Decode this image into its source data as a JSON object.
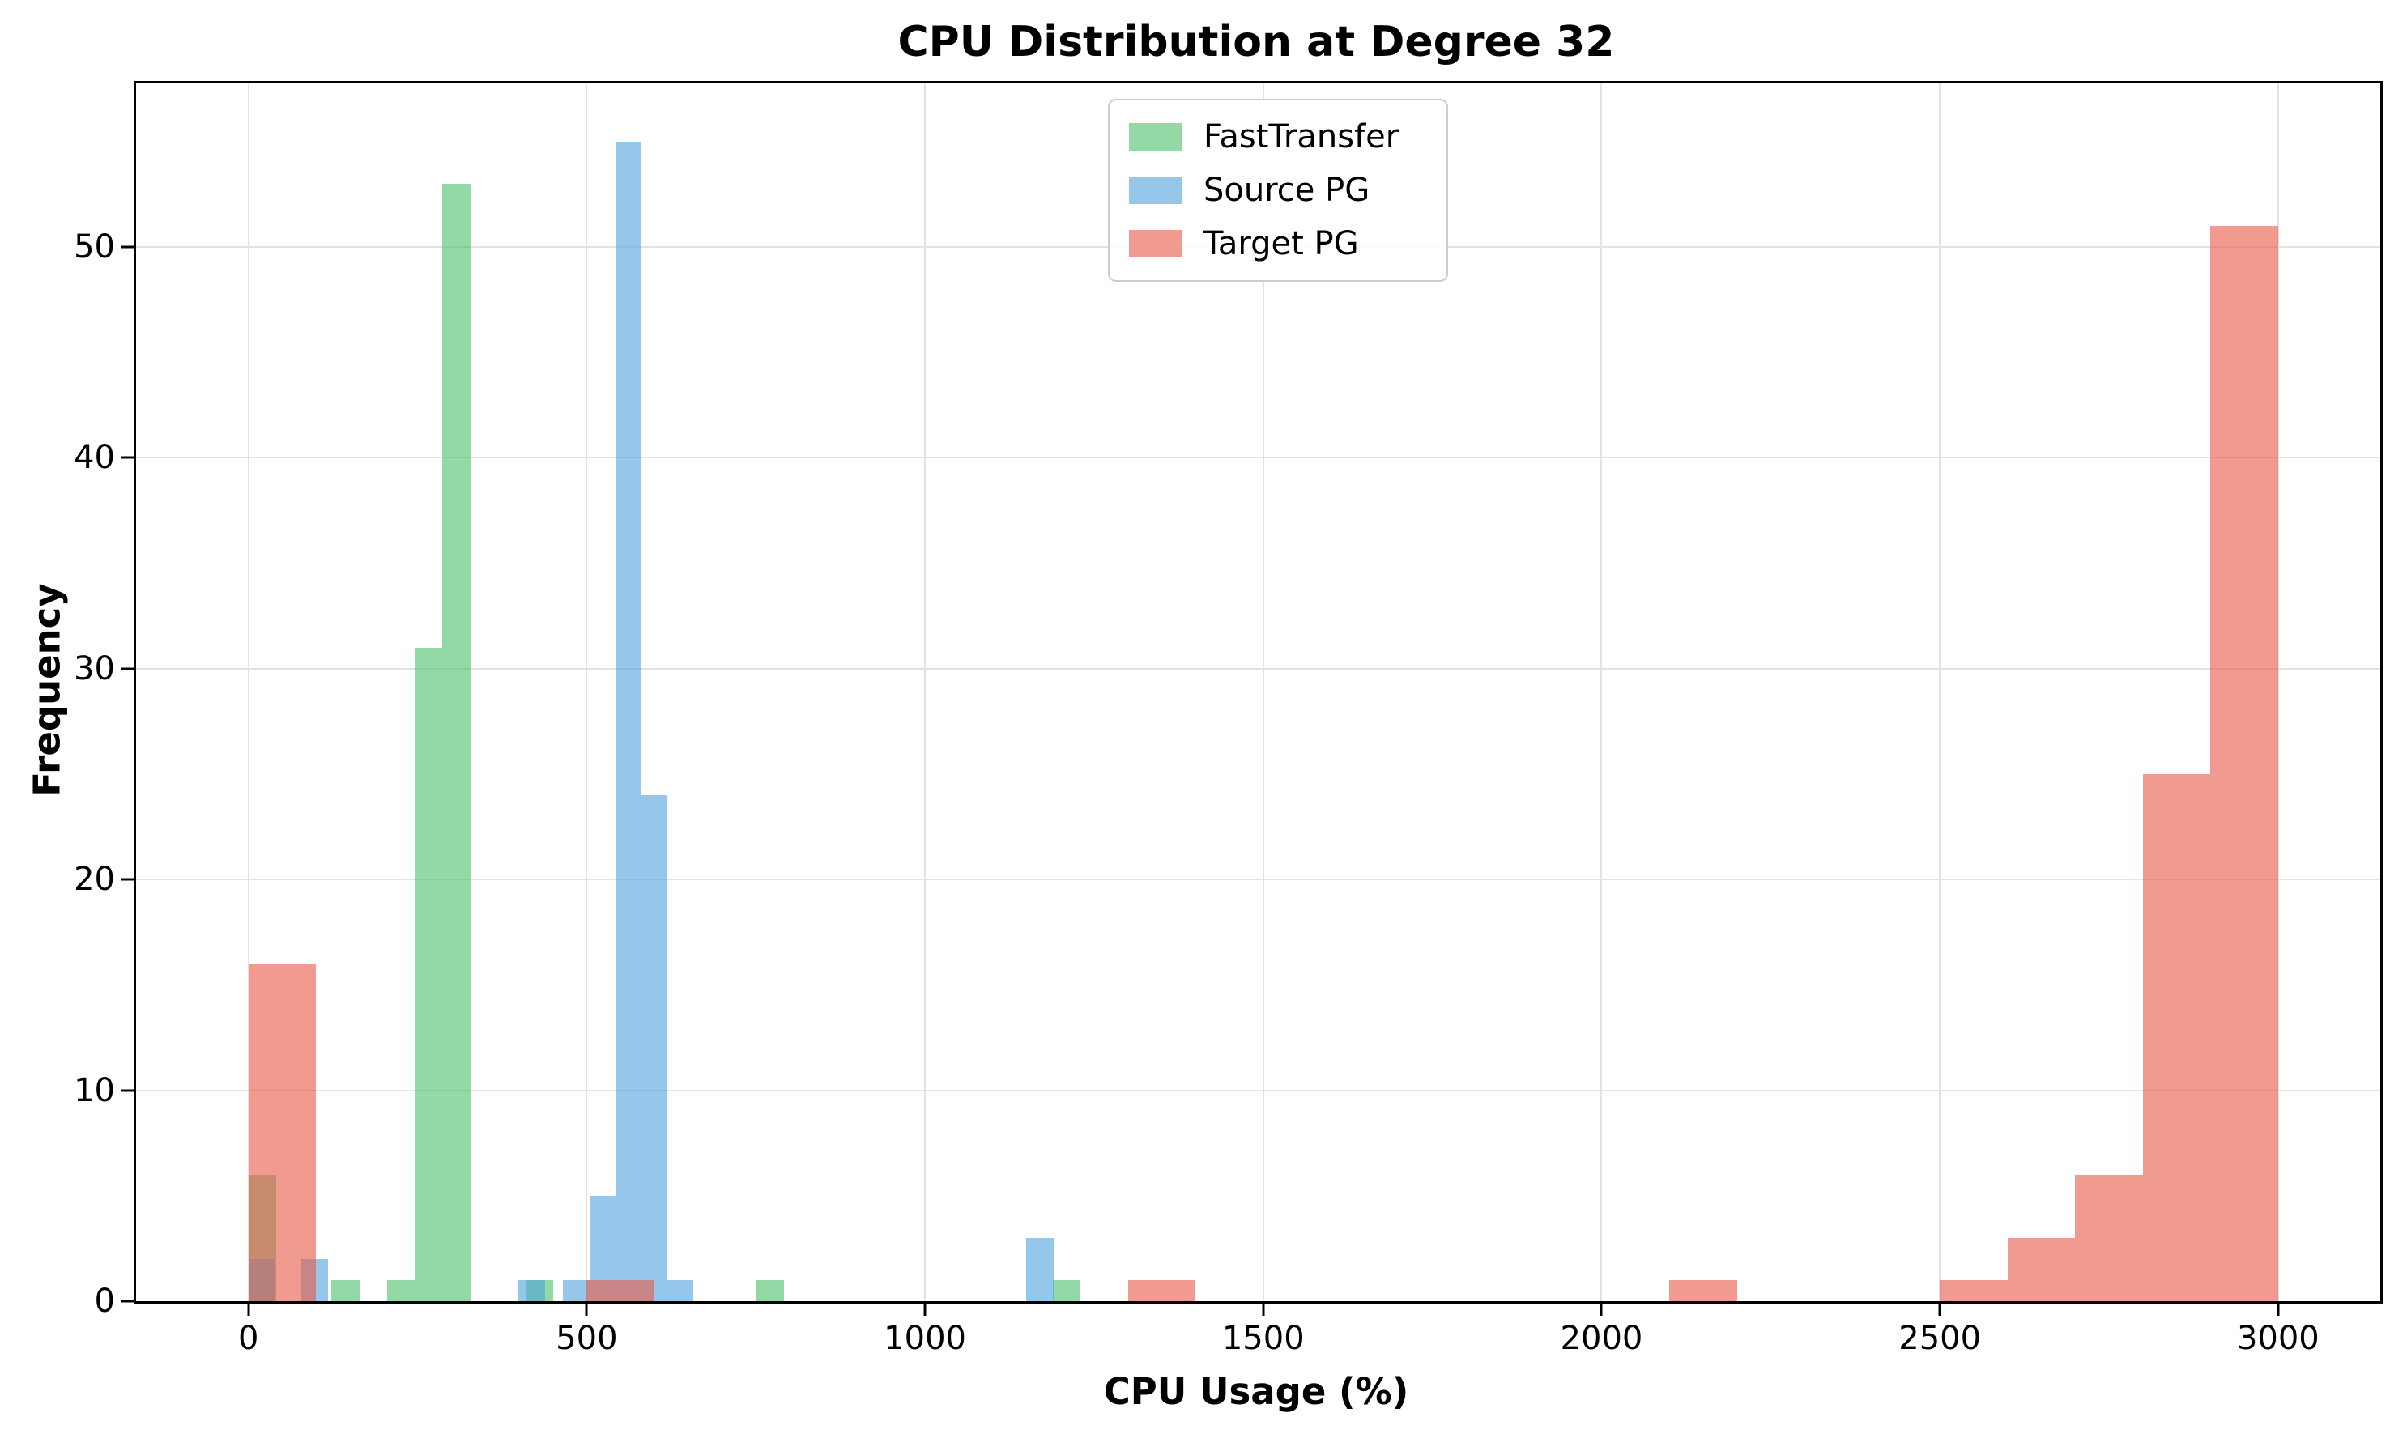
{
  "title": "CPU Distribution at Degree 32",
  "x_axis_label": "CPU Usage (%)",
  "y_axis_label": "Frequency",
  "legend": {
    "items": [
      {
        "id": "fasttransfer",
        "label": "FastTransfer",
        "swatch_color": "#93d9a6"
      },
      {
        "id": "source-pg",
        "label": "Source PG",
        "swatch_color": "#94c7e9"
      },
      {
        "id": "target-pg",
        "label": "Target PG",
        "swatch_color": "#f09a90"
      }
    ]
  },
  "chart_data": {
    "type": "bar",
    "style": "overlapping-histogram",
    "title": "CPU Distribution at Degree 32",
    "xlabel": "CPU Usage (%)",
    "ylabel": "Frequency",
    "grid": true,
    "legend_position": "upper center",
    "x_ticks": [
      0,
      500,
      1000,
      1500,
      2000,
      2500,
      3000
    ],
    "y_ticks": [
      0,
      10,
      20,
      30,
      40,
      50
    ],
    "xlim": [
      -166,
      3151
    ],
    "ylim": [
      0,
      57.75
    ],
    "series": [
      {
        "name": "FastTransfer",
        "fill_color": "rgba(81,194,111,0.62)",
        "solid_color": "#93d9a6",
        "bars": [
          {
            "x0": 0,
            "x1": 41,
            "count": 6
          },
          {
            "x0": 123,
            "x1": 164,
            "count": 1
          },
          {
            "x0": 205,
            "x1": 246,
            "count": 1
          },
          {
            "x0": 246,
            "x1": 287,
            "count": 31
          },
          {
            "x0": 287,
            "x1": 328,
            "count": 53
          },
          {
            "x0": 410,
            "x1": 451,
            "count": 1
          },
          {
            "x0": 751,
            "x1": 792,
            "count": 1
          },
          {
            "x0": 1189,
            "x1": 1230,
            "count": 1
          }
        ]
      },
      {
        "name": "Source PG",
        "fill_color": "rgba(82,165,220,0.62)",
        "solid_color": "#94c7e9",
        "bars": [
          {
            "x0": 0,
            "x1": 40,
            "count": 2
          },
          {
            "x0": 78,
            "x1": 118,
            "count": 2
          },
          {
            "x0": 398,
            "x1": 438,
            "count": 1
          },
          {
            "x0": 465,
            "x1": 505,
            "count": 1
          },
          {
            "x0": 505,
            "x1": 543,
            "count": 5
          },
          {
            "x0": 543,
            "x1": 581,
            "count": 55
          },
          {
            "x0": 581,
            "x1": 619,
            "count": 24
          },
          {
            "x0": 619,
            "x1": 657,
            "count": 1
          },
          {
            "x0": 1149,
            "x1": 1190,
            "count": 3
          }
        ]
      },
      {
        "name": "Target PG",
        "fill_color": "rgba(231,92,76,0.62)",
        "solid_color": "#f09a90",
        "bars": [
          {
            "x0": 0,
            "x1": 100,
            "count": 16
          },
          {
            "x0": 500,
            "x1": 600,
            "count": 1
          },
          {
            "x0": 1300,
            "x1": 1400,
            "count": 1
          },
          {
            "x0": 2100,
            "x1": 2200,
            "count": 1
          },
          {
            "x0": 2500,
            "x1": 2600,
            "count": 1
          },
          {
            "x0": 2600,
            "x1": 2700,
            "count": 3
          },
          {
            "x0": 2700,
            "x1": 2800,
            "count": 6
          },
          {
            "x0": 2800,
            "x1": 2900,
            "count": 25
          },
          {
            "x0": 2900,
            "x1": 3000,
            "count": 51
          }
        ]
      }
    ]
  }
}
